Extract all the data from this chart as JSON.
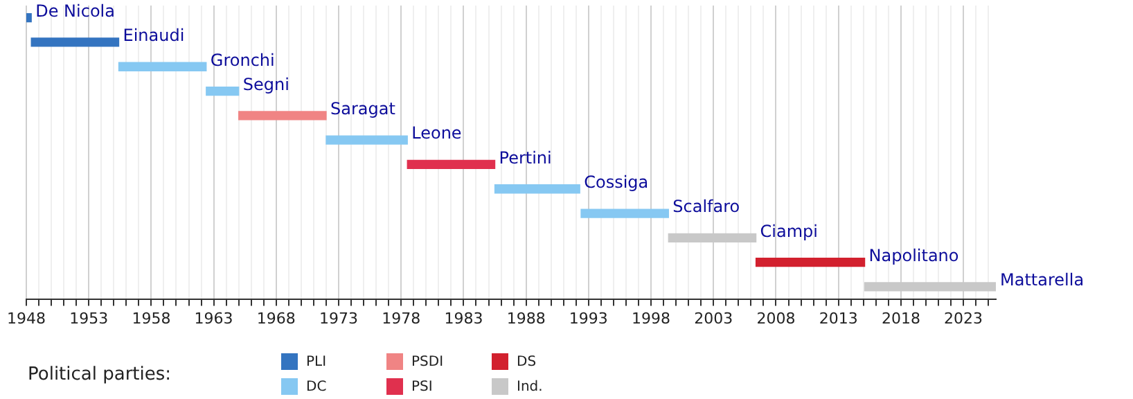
{
  "chart_data": {
    "type": "bar",
    "orientation": "horizontal",
    "legend_title": "Political parties:",
    "legend": "bottom left",
    "grid": "x",
    "categories": [
      "De Nicola",
      "Einaudi",
      "Gronchi",
      "Segni",
      "Saragat",
      "Leone",
      "Pertini",
      "Cossiga",
      "Scalfaro",
      "Ciampi",
      "Napolitano",
      "Mattarella"
    ],
    "xlim": [
      1948,
      2025.6
    ],
    "xticks": [
      1948,
      {
        "value": 1949,
        "label": null
      },
      {
        "value": 1950,
        "label": null
      },
      {
        "value": 1951,
        "label": null
      },
      {
        "value": 1952,
        "label": null
      },
      1953,
      {
        "value": 1954,
        "label": null
      },
      {
        "value": 1955,
        "label": null
      },
      {
        "value": 1956,
        "label": null
      },
      {
        "value": 1957,
        "label": null
      },
      1958,
      {
        "value": 1959,
        "label": null
      },
      {
        "value": 1960,
        "label": null
      },
      {
        "value": 1961,
        "label": null
      },
      {
        "value": 1962,
        "label": null
      },
      1963,
      {
        "value": 1964,
        "label": null
      },
      {
        "value": 1965,
        "label": null
      },
      {
        "value": 1966,
        "label": null
      },
      {
        "value": 1967,
        "label": null
      },
      1968,
      {
        "value": 1969,
        "label": null
      },
      {
        "value": 1970,
        "label": null
      },
      {
        "value": 1971,
        "label": null
      },
      {
        "value": 1972,
        "label": null
      },
      1973,
      {
        "value": 1974,
        "label": null
      },
      {
        "value": 1975,
        "label": null
      },
      {
        "value": 1976,
        "label": null
      },
      {
        "value": 1977,
        "label": null
      },
      1978,
      {
        "value": 1979,
        "label": null
      },
      {
        "value": 1980,
        "label": null
      },
      {
        "value": 1981,
        "label": null
      },
      {
        "value": 1982,
        "label": null
      },
      1983,
      {
        "value": 1984,
        "label": null
      },
      {
        "value": 1985,
        "label": null
      },
      {
        "value": 1986,
        "label": null
      },
      {
        "value": 1987,
        "label": null
      },
      1988,
      {
        "value": 1989,
        "label": null
      },
      {
        "value": 1990,
        "label": null
      },
      {
        "value": 1991,
        "label": null
      },
      {
        "value": 1992,
        "label": null
      },
      1993,
      {
        "value": 1994,
        "label": null
      },
      {
        "value": 1995,
        "label": null
      },
      {
        "value": 1996,
        "label": null
      },
      {
        "value": 1997,
        "label": null
      },
      1998,
      {
        "value": 1999,
        "label": null
      },
      {
        "value": 2000,
        "label": null
      },
      {
        "value": 2001,
        "label": null
      },
      {
        "value": 2002,
        "label": null
      },
      2003,
      {
        "value": 2004,
        "label": null
      },
      {
        "value": 2005,
        "label": null
      },
      {
        "value": 2006,
        "label": null
      },
      {
        "value": 2007,
        "label": null
      },
      2008,
      {
        "value": 2009,
        "label": null
      },
      {
        "value": 2010,
        "label": null
      },
      {
        "value": 2011,
        "label": null
      },
      {
        "value": 2012,
        "label": null
      },
      2013,
      {
        "value": 2014,
        "label": null
      },
      {
        "value": 2015,
        "label": null
      },
      {
        "value": 2016,
        "label": null
      },
      {
        "value": 2017,
        "label": null
      },
      2018,
      {
        "value": 2019,
        "label": null
      },
      {
        "value": 2020,
        "label": null
      },
      {
        "value": 2021,
        "label": null
      },
      {
        "value": 2022,
        "label": null
      },
      2023,
      {
        "value": 2024,
        "label": null
      },
      {
        "value": 2025,
        "label": null
      }
    ],
    "series": [
      {
        "name": "PLI",
        "color": "#3474c0",
        "base": [
          1948,
          1948.4,
          null,
          null,
          null,
          null,
          null,
          null,
          null,
          null,
          null,
          null
        ],
        "values": [
          0.4,
          7.0,
          null,
          null,
          null,
          null,
          null,
          null,
          null,
          null,
          null,
          null
        ]
      },
      {
        "name": "DC",
        "color": "#86c8f2",
        "base": [
          null,
          null,
          1955.4,
          1962.4,
          null,
          1972.0,
          null,
          1985.5,
          1992.4,
          null,
          null,
          null
        ],
        "values": [
          null,
          null,
          7.0,
          2.6,
          null,
          6.5,
          null,
          6.8,
          7.0,
          null,
          null,
          null
        ]
      },
      {
        "name": "PSDI",
        "color": "#f08484",
        "base": [
          null,
          null,
          null,
          null,
          1965.0,
          null,
          null,
          null,
          null,
          null,
          null,
          null
        ],
        "values": [
          null,
          null,
          null,
          null,
          7.0,
          null,
          null,
          null,
          null,
          null,
          null,
          null
        ]
      },
      {
        "name": "PSI",
        "color": "#e0304e",
        "base": [
          null,
          null,
          null,
          null,
          null,
          null,
          1978.5,
          null,
          null,
          null,
          null,
          null
        ],
        "values": [
          null,
          null,
          null,
          null,
          null,
          null,
          7.0,
          null,
          null,
          null,
          null,
          null
        ]
      },
      {
        "name": "DS",
        "color": "#d2202e",
        "base": [
          null,
          null,
          null,
          null,
          null,
          null,
          null,
          null,
          null,
          null,
          2006.4,
          null
        ],
        "values": [
          null,
          null,
          null,
          null,
          null,
          null,
          null,
          null,
          null,
          null,
          8.7,
          null
        ]
      },
      {
        "name": "Ind.",
        "color": "#c8c8c8",
        "base": [
          null,
          null,
          null,
          null,
          null,
          null,
          null,
          null,
          null,
          1999.4,
          null,
          2015.1
        ],
        "values": [
          null,
          null,
          null,
          null,
          null,
          null,
          null,
          null,
          null,
          7.0,
          null,
          10.5
        ]
      }
    ]
  }
}
